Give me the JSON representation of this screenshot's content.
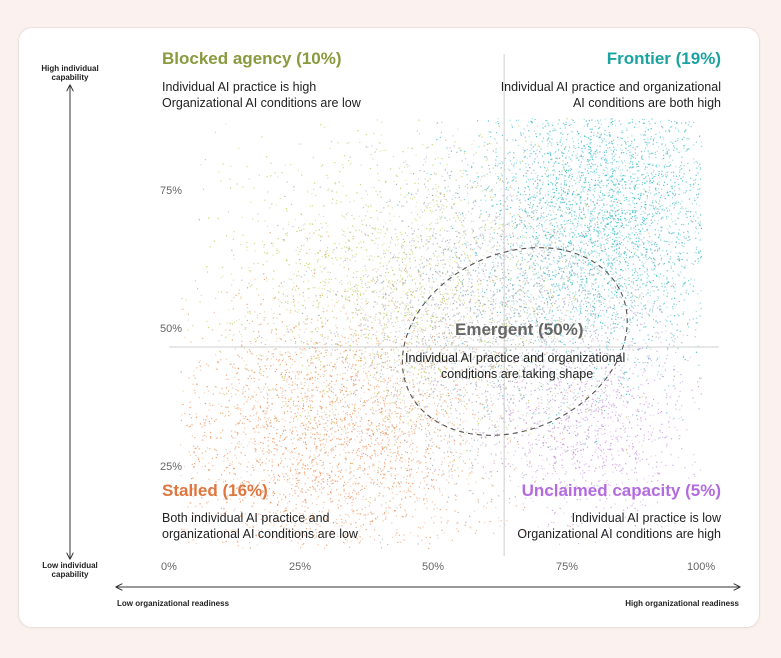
{
  "chart_data": {
    "type": "scatter",
    "xlim": [
      0,
      100
    ],
    "ylim": [
      0,
      100
    ],
    "x_ticks": [
      "0%",
      "25%",
      "50%",
      "75%",
      "100%"
    ],
    "y_ticks": [
      "25%",
      "50%",
      "75%"
    ],
    "x_axis": {
      "low_label": "Low organizational readiness",
      "high_label": "High organizational readiness"
    },
    "y_axis": {
      "high_label": "High individual capability",
      "low_label": "Low individual capability"
    },
    "dividers": {
      "x": 63,
      "y": 47
    },
    "quadrants": [
      {
        "key": "blocked",
        "title": "Blocked agency (10%)",
        "share": 10,
        "color": "#8a9a3e",
        "desc": [
          "Individual AI practice is high",
          "Organizational AI conditions are low"
        ]
      },
      {
        "key": "frontier",
        "title": "Frontier (19%)",
        "share": 19,
        "color": "#1aa3a3",
        "desc": [
          "Individual AI practice and organizational",
          "AI conditions are both high"
        ]
      },
      {
        "key": "emergent",
        "title": "Emergent (50%)",
        "share": 50,
        "color": "#666666",
        "desc": [
          "Individual AI practice and organizational",
          "conditions are taking shape"
        ]
      },
      {
        "key": "stalled",
        "title": "Stalled (16%)",
        "share": 16,
        "color": "#e0763f",
        "desc": [
          "Both individual AI practice and",
          "organizational AI conditions are low"
        ]
      },
      {
        "key": "unclaimed",
        "title": "Unclaimed capacity (5%)",
        "share": 5,
        "color": "#b56be0",
        "desc": [
          "Individual AI practice is low",
          "Organizational AI conditions are high"
        ]
      }
    ],
    "clusters": [
      {
        "name": "stalled",
        "color": "#ec8a4e",
        "cx": 30,
        "cy": 30,
        "sx": 16,
        "sy": 13,
        "n": 3200
      },
      {
        "name": "blocked",
        "color": "#bfc94a",
        "cx": 42,
        "cy": 58,
        "sx": 17,
        "sy": 15,
        "n": 1800
      },
      {
        "name": "frontier",
        "color": "#2ab8c2",
        "cx": 82,
        "cy": 72,
        "sx": 12,
        "sy": 14,
        "n": 3800
      },
      {
        "name": "emergent",
        "color": "#9aa3b0",
        "cx": 62,
        "cy": 52,
        "sx": 16,
        "sy": 14,
        "n": 3000
      },
      {
        "name": "unclaimed",
        "color": "#c889e6",
        "cx": 80,
        "cy": 33,
        "sx": 10,
        "sy": 9,
        "n": 900
      }
    ],
    "ellipse": {
      "cx": 65,
      "cy": 48,
      "rx": 22,
      "ry": 16,
      "rotation_deg": -25
    }
  }
}
